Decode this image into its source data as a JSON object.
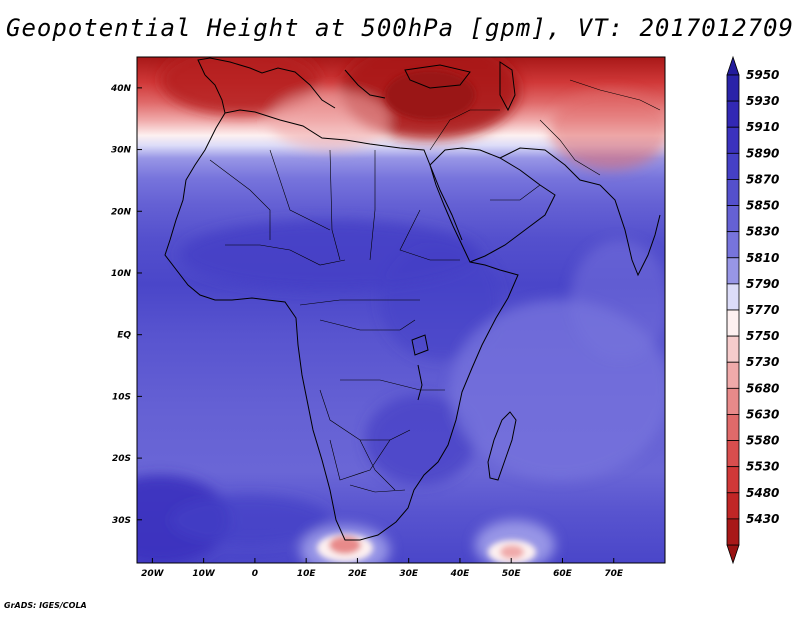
{
  "title": "Geopotential Height at 500hPa [gpm], VT: 2017012709",
  "credit": "GrADS: IGES/COLA",
  "map": {
    "variable": "Geopotential Height",
    "level": "500hPa",
    "units": "gpm",
    "valid_time": "2017012709",
    "lon_range": [
      -23,
      80
    ],
    "lat_range": [
      -37,
      45
    ],
    "lon_ticks": [
      {
        "lon": -20,
        "label": "20W"
      },
      {
        "lon": -10,
        "label": "10W"
      },
      {
        "lon": 0,
        "label": "0"
      },
      {
        "lon": 10,
        "label": "10E"
      },
      {
        "lon": 20,
        "label": "20E"
      },
      {
        "lon": 30,
        "label": "30E"
      },
      {
        "lon": 40,
        "label": "40E"
      },
      {
        "lon": 50,
        "label": "50E"
      },
      {
        "lon": 60,
        "label": "60E"
      },
      {
        "lon": 70,
        "label": "70E"
      }
    ],
    "lat_ticks": [
      {
        "lat": 40,
        "label": "40N"
      },
      {
        "lat": 30,
        "label": "30N"
      },
      {
        "lat": 20,
        "label": "20N"
      },
      {
        "lat": 10,
        "label": "10N"
      },
      {
        "lat": 0,
        "label": "EQ"
      },
      {
        "lat": -10,
        "label": "10S"
      },
      {
        "lat": -20,
        "label": "20S"
      },
      {
        "lat": -30,
        "label": "30S"
      }
    ]
  },
  "colorbar": {
    "levels": [
      {
        "label": "5950",
        "color": "#2a23a8"
      },
      {
        "label": "5930",
        "color": "#3228b4"
      },
      {
        "label": "5910",
        "color": "#3b32be"
      },
      {
        "label": "5890",
        "color": "#4540c6"
      },
      {
        "label": "5870",
        "color": "#5450cd"
      },
      {
        "label": "5850",
        "color": "#6561d4"
      },
      {
        "label": "5830",
        "color": "#7774dc"
      },
      {
        "label": "5810",
        "color": "#9896e6"
      },
      {
        "label": "5790",
        "color": "#dcdcf8"
      },
      {
        "label": "5770",
        "color": "#fdf0f0"
      },
      {
        "label": "5750",
        "color": "#f6cccc"
      },
      {
        "label": "5730",
        "color": "#f0aaaa"
      },
      {
        "label": "5680",
        "color": "#e88a8a"
      },
      {
        "label": "5630",
        "color": "#e06a6a"
      },
      {
        "label": "5580",
        "color": "#d84e4e"
      },
      {
        "label": "5530",
        "color": "#d03838"
      },
      {
        "label": "5480",
        "color": "#c02626"
      },
      {
        "label": "5430",
        "color": "#a81818"
      }
    ],
    "top_arrow_color": "#231c9c",
    "bottom_arrow_color": "#9a1212"
  }
}
